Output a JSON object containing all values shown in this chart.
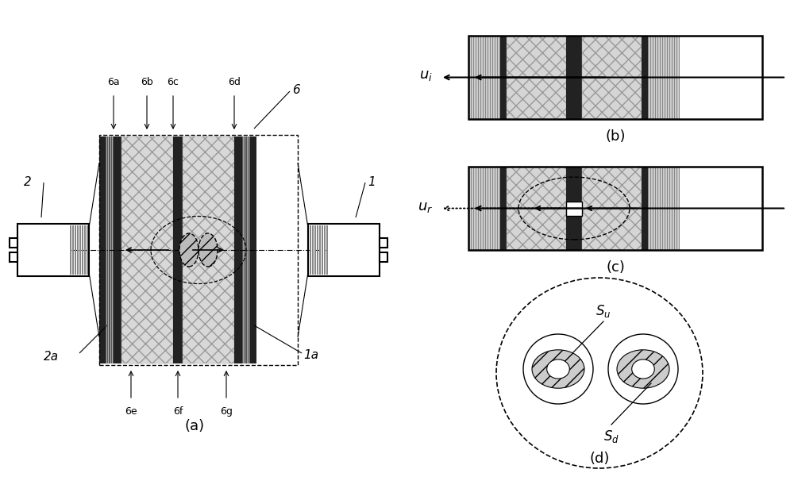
{
  "bg_color": "#ffffff",
  "label_a": "(a)",
  "label_b": "(b)",
  "label_c": "(c)",
  "label_d": "(d)"
}
